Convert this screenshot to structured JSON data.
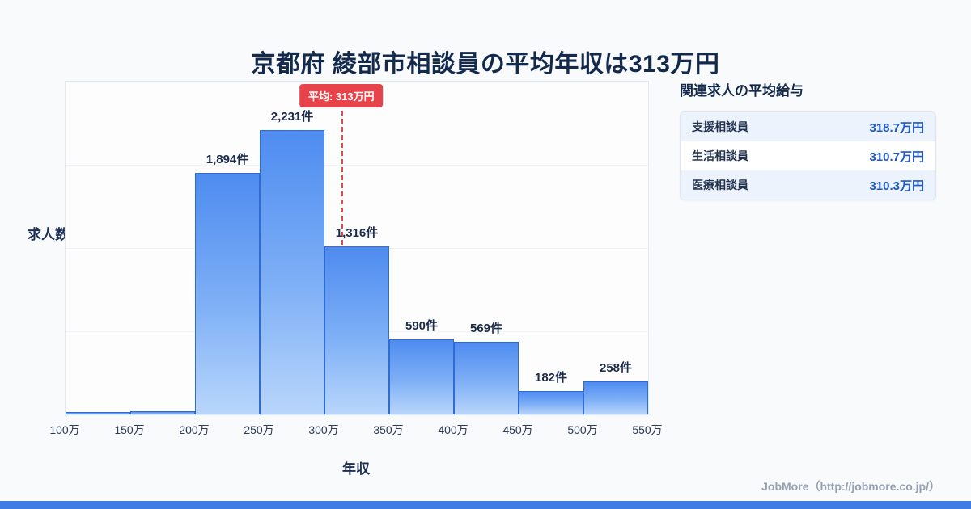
{
  "header": {
    "title": "京都府 綾部市相談員の平均年収は313万円"
  },
  "chart_data": {
    "type": "bar",
    "title": "京都府 綾部市相談員の平均年収は313万円",
    "xlabel": "年収",
    "ylabel": "求人数",
    "bin_edges": [
      100,
      150,
      200,
      250,
      300,
      350,
      400,
      450,
      500,
      550
    ],
    "tick_labels": [
      "100万",
      "150万",
      "200万",
      "250万",
      "300万",
      "350万",
      "400万",
      "450万",
      "500万",
      "550万"
    ],
    "values": [
      10,
      25,
      1894,
      2231,
      1316,
      590,
      569,
      182,
      258
    ],
    "labels": [
      "",
      "",
      "1,894件",
      "2,231件",
      "1,316件",
      "590件",
      "569件",
      "182件",
      "258件"
    ],
    "ylim": [
      0,
      2400
    ],
    "grid": "faint-horizontal",
    "legend": "none",
    "average": {
      "value": 313,
      "label": "平均: 313万円"
    }
  },
  "side_panel": {
    "heading": "関連求人の平均給与",
    "rows": [
      {
        "name": "支援相談員",
        "value": "318.7万円"
      },
      {
        "name": "生活相談員",
        "value": "310.7万円"
      },
      {
        "name": "医療相談員",
        "value": "310.3万円"
      }
    ]
  },
  "footer": {
    "credit": "JobMore（http://jobmore.co.jp/）"
  },
  "colors": {
    "background": "#f8fafc",
    "title_navy": "#142a4d",
    "bar_top": "#4e8cf0",
    "bar_bottom": "#b9d6fb",
    "bar_border": "#2f6bd0",
    "avg_red": "#e8434b",
    "value_blue": "#1c59cb",
    "footer_bar_blue": "#3f7de4"
  }
}
